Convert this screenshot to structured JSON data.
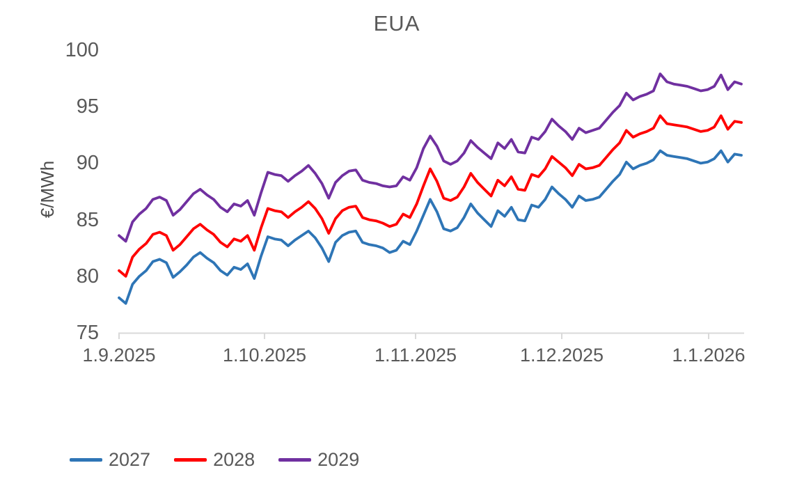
{
  "chart_data": {
    "type": "line",
    "title": "EUA",
    "xlabel": "",
    "ylabel": "€/MWh",
    "ylim": [
      75,
      100
    ],
    "yticks": [
      100,
      95,
      90,
      85,
      80,
      75
    ],
    "xtick_labels": [
      "1.9.2025",
      "1.10.2025",
      "1.11.2025",
      "1.12.2025",
      "1.1.2026"
    ],
    "grid": false,
    "legend_position": "bottom-left",
    "axis_color": "#d9d9d9",
    "text_color": "#595959",
    "x_dates": [
      "1.9.2025",
      "2.9.2025",
      "3.9.2025",
      "4.9.2025",
      "5.9.2025",
      "8.9.2025",
      "9.9.2025",
      "10.9.2025",
      "11.9.2025",
      "12.9.2025",
      "15.9.2025",
      "16.9.2025",
      "17.9.2025",
      "18.9.2025",
      "19.9.2025",
      "22.9.2025",
      "23.9.2025",
      "24.9.2025",
      "25.9.2025",
      "26.9.2025",
      "29.9.2025",
      "30.9.2025",
      "1.10.2025",
      "2.10.2025",
      "3.10.2025",
      "6.10.2025",
      "7.10.2025",
      "8.10.2025",
      "9.10.2025",
      "10.10.2025",
      "13.10.2025",
      "14.10.2025",
      "15.10.2025",
      "16.10.2025",
      "17.10.2025",
      "20.10.2025",
      "21.10.2025",
      "22.10.2025",
      "23.10.2025",
      "24.10.2025",
      "27.10.2025",
      "28.10.2025",
      "29.10.2025",
      "30.10.2025",
      "31.10.2025",
      "3.11.2025",
      "4.11.2025",
      "5.11.2025",
      "6.11.2025",
      "7.11.2025",
      "10.11.2025",
      "11.11.2025",
      "12.11.2025",
      "13.11.2025",
      "14.11.2025",
      "17.11.2025",
      "18.11.2025",
      "19.11.2025",
      "20.11.2025",
      "21.11.2025",
      "24.11.2025",
      "25.11.2025",
      "26.11.2025",
      "27.11.2025",
      "28.11.2025",
      "1.12.2025",
      "2.12.2025",
      "3.12.2025",
      "4.12.2025",
      "5.12.2025",
      "8.12.2025",
      "9.12.2025",
      "10.12.2025",
      "11.12.2025",
      "12.12.2025",
      "15.12.2025",
      "16.12.2025",
      "17.12.2025",
      "18.12.2025",
      "19.12.2025",
      "22.12.2025",
      "23.12.2025",
      "24.12.2025",
      "25.12.2025",
      "26.12.2025",
      "29.12.2025",
      "30.12.2025",
      "31.12.2025",
      "1.1.2026",
      "2.1.2026",
      "5.1.2026",
      "6.1.2026",
      "7.1.2026"
    ],
    "series": [
      {
        "name": "2027",
        "color": "#2E75B6",
        "values": [
          78.1,
          77.6,
          79.3,
          80.0,
          80.5,
          81.3,
          81.5,
          81.2,
          79.9,
          80.4,
          81.0,
          81.7,
          82.1,
          81.6,
          81.2,
          80.5,
          80.1,
          80.8,
          80.6,
          81.1,
          79.8,
          81.8,
          83.5,
          83.3,
          83.2,
          82.7,
          83.2,
          83.6,
          84.0,
          83.4,
          82.5,
          81.3,
          83.0,
          83.6,
          83.9,
          84.0,
          83.0,
          82.8,
          82.7,
          82.5,
          82.1,
          82.3,
          83.1,
          82.8,
          84.0,
          85.4,
          86.8,
          85.7,
          84.2,
          84.0,
          84.3,
          85.2,
          86.4,
          85.6,
          85.0,
          84.4,
          85.8,
          85.3,
          86.1,
          85.0,
          84.9,
          86.3,
          86.1,
          86.8,
          87.9,
          87.3,
          86.8,
          86.1,
          87.1,
          86.7,
          86.8,
          87.0,
          87.7,
          88.4,
          89.0,
          90.1,
          89.5,
          89.8,
          90.0,
          90.3,
          91.1,
          90.7,
          90.6,
          90.5,
          90.4,
          90.2,
          90.0,
          90.1,
          90.4,
          91.1,
          90.1,
          90.8,
          90.7
        ]
      },
      {
        "name": "2028",
        "color": "#FF0000",
        "values": [
          80.5,
          80.0,
          81.7,
          82.4,
          82.9,
          83.7,
          83.9,
          83.6,
          82.3,
          82.8,
          83.5,
          84.2,
          84.6,
          84.1,
          83.7,
          83.0,
          82.6,
          83.3,
          83.1,
          83.6,
          82.3,
          84.3,
          86.0,
          85.8,
          85.7,
          85.2,
          85.7,
          86.1,
          86.6,
          86.0,
          85.1,
          83.8,
          85.1,
          85.8,
          86.1,
          86.2,
          85.2,
          85.0,
          84.9,
          84.7,
          84.4,
          84.6,
          85.5,
          85.2,
          86.4,
          88.0,
          89.5,
          88.4,
          86.9,
          86.7,
          87.0,
          87.9,
          89.1,
          88.3,
          87.7,
          87.1,
          88.5,
          88.0,
          88.8,
          87.7,
          87.6,
          89.0,
          88.8,
          89.5,
          90.6,
          90.1,
          89.6,
          88.9,
          89.9,
          89.5,
          89.6,
          89.8,
          90.5,
          91.2,
          91.8,
          92.9,
          92.3,
          92.6,
          92.8,
          93.1,
          94.2,
          93.5,
          93.4,
          93.3,
          93.2,
          93.0,
          92.8,
          92.9,
          93.2,
          94.2,
          93.0,
          93.7,
          93.6
        ]
      },
      {
        "name": "2029",
        "color": "#7030A0",
        "values": [
          83.6,
          83.1,
          84.8,
          85.5,
          86.0,
          86.8,
          87.0,
          86.7,
          85.4,
          85.9,
          86.6,
          87.3,
          87.7,
          87.2,
          86.8,
          86.1,
          85.7,
          86.4,
          86.2,
          86.7,
          85.4,
          87.4,
          89.2,
          89.0,
          88.9,
          88.4,
          88.9,
          89.3,
          89.8,
          89.1,
          88.2,
          86.9,
          88.3,
          88.9,
          89.3,
          89.4,
          88.5,
          88.3,
          88.2,
          88.0,
          87.9,
          88.0,
          88.8,
          88.5,
          89.6,
          91.3,
          92.4,
          91.5,
          90.2,
          89.9,
          90.2,
          90.9,
          92.0,
          91.4,
          90.9,
          90.4,
          91.8,
          91.3,
          92.1,
          91.0,
          90.9,
          92.3,
          92.1,
          92.8,
          93.9,
          93.3,
          92.8,
          92.1,
          93.1,
          92.7,
          92.9,
          93.1,
          93.8,
          94.5,
          95.1,
          96.2,
          95.6,
          95.9,
          96.1,
          96.4,
          97.9,
          97.2,
          97.0,
          96.9,
          96.8,
          96.6,
          96.4,
          96.5,
          96.8,
          97.8,
          96.5,
          97.2,
          97.0
        ]
      }
    ]
  }
}
